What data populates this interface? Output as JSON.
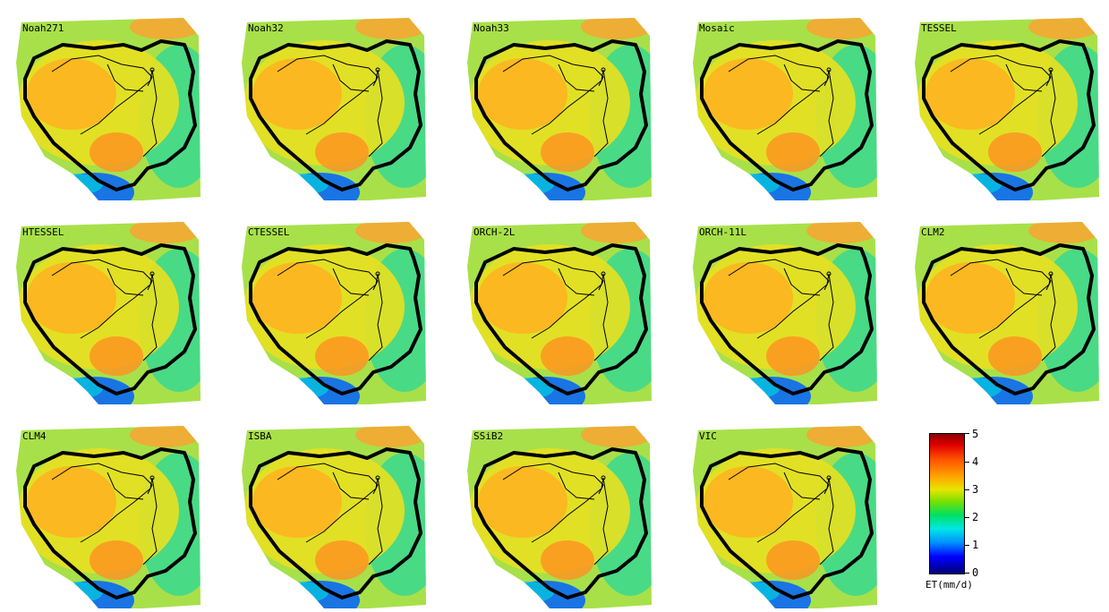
{
  "panels": [
    {
      "label": "Noah271"
    },
    {
      "label": "Noah32"
    },
    {
      "label": "Noah33"
    },
    {
      "label": "Mosaic"
    },
    {
      "label": "TESSEL"
    },
    {
      "label": "HTESSEL"
    },
    {
      "label": "CTESSEL"
    },
    {
      "label": "ORCH-2L"
    },
    {
      "label": "ORCH-11L"
    },
    {
      "label": "CLM2"
    },
    {
      "label": "CLM4"
    },
    {
      "label": "ISBA"
    },
    {
      "label": "SSiB2"
    },
    {
      "label": "VIC"
    }
  ],
  "colorbar": {
    "title": "ET(mm/d)",
    "ticks": [
      "0",
      "1",
      "2",
      "3",
      "4",
      "5"
    ],
    "range": [
      0,
      5
    ],
    "colors": [
      "#00007a",
      "#0000ff",
      "#00e6e6",
      "#00e060",
      "#e6e600",
      "#ffa000",
      "#e00000",
      "#8b0000"
    ]
  }
}
